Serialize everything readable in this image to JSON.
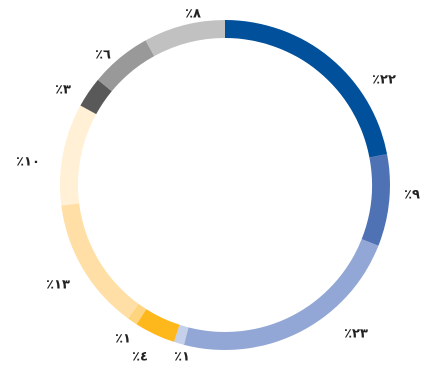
{
  "chart_data": {
    "type": "pie",
    "style": "donut",
    "grid": false,
    "legend": "none",
    "slices": [
      {
        "value": 22,
        "label": "٪٢٢",
        "color": "#00509b"
      },
      {
        "value": 9,
        "label": "٪٩",
        "color": "#4f72b4"
      },
      {
        "value": 23,
        "label": "٪٢٣",
        "color": "#92a7d5"
      },
      {
        "value": 1,
        "label": "٪١",
        "color": "#c5d1ea"
      },
      {
        "value": 4,
        "label": "٪٤",
        "color": "#ffb81c"
      },
      {
        "value": 1,
        "label": "٪١",
        "color": "#ffd47e"
      },
      {
        "value": 13,
        "label": "٪١٣",
        "color": "#ffdfa6"
      },
      {
        "value": 10,
        "label": "٪١٠",
        "color": "#fff0d6"
      },
      {
        "value": 3,
        "label": "٪٣",
        "color": "#595959"
      },
      {
        "value": 6,
        "label": "٪٦",
        "color": "#999999"
      },
      {
        "value": 8,
        "label": "٪٨",
        "color": "#c1c1c1"
      }
    ]
  }
}
